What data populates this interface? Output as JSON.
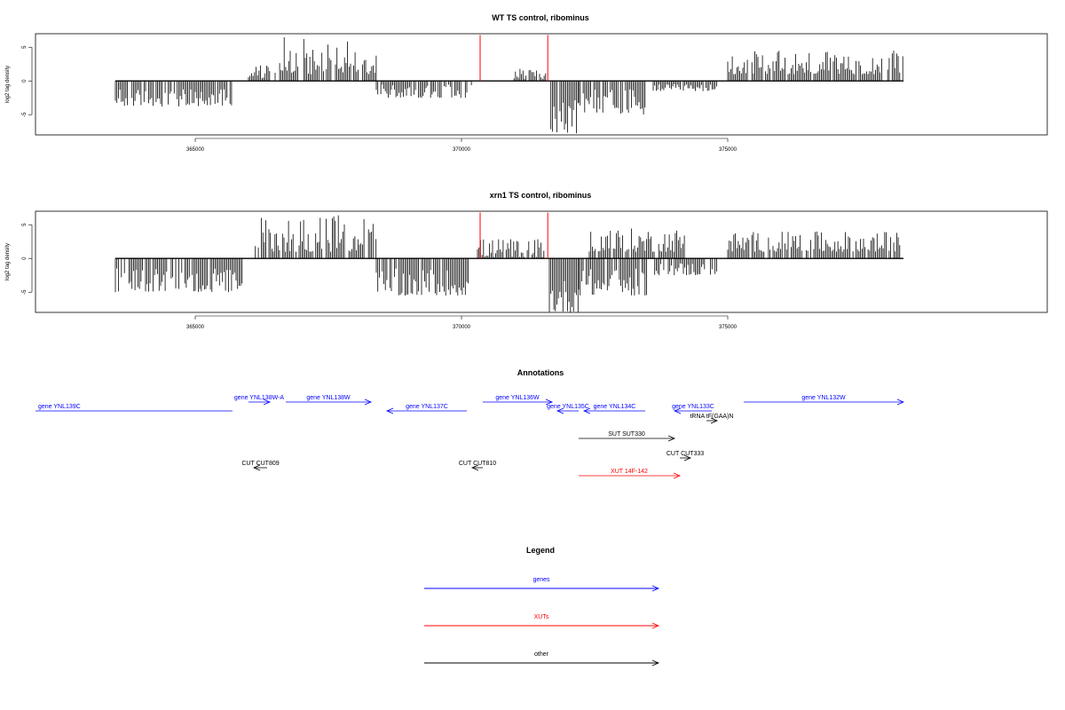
{
  "chart_data": [
    {
      "type": "bar",
      "title": "WT TS control, ribominus",
      "ylabel": "log2 tag density",
      "xlim": [
        362000,
        381000
      ],
      "ylim": [
        -8,
        7
      ],
      "xticks": [
        365000,
        370000,
        375000
      ],
      "xtick_labels": [
        "365000",
        "370000",
        "375000"
      ],
      "yticks": [
        -5,
        0,
        5
      ],
      "ytick_labels": [
        "-5",
        "0",
        "5"
      ],
      "baseline": [
        363500,
        378300
      ],
      "red_spikes": [
        {
          "x": 370350,
          "y": 6.8
        },
        {
          "x": 371620,
          "y": 6.8
        }
      ],
      "series": [
        {
          "start": 363500,
          "end": 365700,
          "min": -3.8,
          "max": -1.2,
          "sign": -1
        },
        {
          "start": 366000,
          "end": 366400,
          "min": 0.4,
          "max": 2.5,
          "sign": 1
        },
        {
          "start": 366500,
          "end": 368400,
          "min": 1.0,
          "max": 6.5,
          "sign": 1
        },
        {
          "start": 368400,
          "end": 370200,
          "min": -2.5,
          "max": -0.5,
          "sign": -1
        },
        {
          "start": 370900,
          "end": 371600,
          "min": 0.3,
          "max": 2.0,
          "sign": 1
        },
        {
          "start": 371650,
          "end": 372200,
          "min": -7.8,
          "max": -2.5,
          "sign": -1
        },
        {
          "start": 372200,
          "end": 373500,
          "min": -5.0,
          "max": -1.0,
          "sign": -1
        },
        {
          "start": 373600,
          "end": 374800,
          "min": -1.5,
          "max": -0.5,
          "sign": -1
        },
        {
          "start": 375000,
          "end": 378300,
          "min": 1.0,
          "max": 4.5,
          "sign": 1
        }
      ]
    },
    {
      "type": "bar",
      "title": "xrn1 TS control, ribominus",
      "ylabel": "log2 tag density",
      "xlim": [
        362000,
        381000
      ],
      "ylim": [
        -8,
        7
      ],
      "xticks": [
        365000,
        370000,
        375000
      ],
      "xtick_labels": [
        "365000",
        "370000",
        "375000"
      ],
      "yticks": [
        -5,
        0,
        5
      ],
      "ytick_labels": [
        "-5",
        "0",
        "5"
      ],
      "baseline": [
        363500,
        378300
      ],
      "red_spikes": [
        {
          "x": 370350,
          "y": 6.8
        },
        {
          "x": 371620,
          "y": 6.8
        }
      ],
      "series": [
        {
          "start": 363500,
          "end": 365900,
          "min": -5.0,
          "max": -1.5,
          "sign": -1
        },
        {
          "start": 366100,
          "end": 368400,
          "min": 1.0,
          "max": 6.5,
          "sign": 1
        },
        {
          "start": 368400,
          "end": 370200,
          "min": -5.5,
          "max": -1.5,
          "sign": -1
        },
        {
          "start": 370300,
          "end": 371600,
          "min": 0.2,
          "max": 3.0,
          "sign": 1
        },
        {
          "start": 371650,
          "end": 372200,
          "min": -8.0,
          "max": -3.0,
          "sign": -1
        },
        {
          "start": 372200,
          "end": 373500,
          "min": -5.5,
          "max": -1.5,
          "sign": -1
        },
        {
          "start": 372400,
          "end": 374200,
          "min": 1.0,
          "max": 4.5,
          "sign": 1
        },
        {
          "start": 373600,
          "end": 374800,
          "min": -2.5,
          "max": -0.5,
          "sign": -1
        },
        {
          "start": 375000,
          "end": 378300,
          "min": 1.0,
          "max": 4.0,
          "sign": 1
        }
      ]
    }
  ],
  "annotations": {
    "title": "Annotations",
    "features": [
      {
        "label": "gene YNL139C",
        "color": "#0000ff",
        "start": 362000,
        "end": 365700,
        "dir": "none",
        "row": 0
      },
      {
        "label": "gene YNL138W-A",
        "color": "#0000ff",
        "start": 366000,
        "end": 366400,
        "dir": "right",
        "row": 1
      },
      {
        "label": "gene YNL138W",
        "color": "#0000ff",
        "start": 366700,
        "end": 368300,
        "dir": "right",
        "row": 1
      },
      {
        "label": "gene YNL137C",
        "color": "#0000ff",
        "start": 368600,
        "end": 370100,
        "dir": "left",
        "row": 0
      },
      {
        "label": "gene YNL136W",
        "color": "#0000ff",
        "start": 370400,
        "end": 371700,
        "dir": "right",
        "row": 1
      },
      {
        "label": "gene YNL135C",
        "color": "#0000ff",
        "start": 371800,
        "end": 372200,
        "dir": "left",
        "row": 0
      },
      {
        "label": "gene YNL134C",
        "color": "#0000ff",
        "start": 372300,
        "end": 373450,
        "dir": "left",
        "row": 0
      },
      {
        "label": "gene YNL133C",
        "color": "#0000ff",
        "start": 374000,
        "end": 374700,
        "dir": "left",
        "row": 0
      },
      {
        "label": "gene YNL132W",
        "color": "#0000ff",
        "start": 375300,
        "end": 378300,
        "dir": "right",
        "row": 1
      },
      {
        "label": "tRNA tF(GAA)N",
        "color": "#000000",
        "start": 374600,
        "end": 374800,
        "dir": "right",
        "row": 2
      },
      {
        "label": "SUT SUT330",
        "color": "#000000",
        "start": 372200,
        "end": 374000,
        "dir": "right",
        "row": 3
      },
      {
        "label": "CUT CUT333",
        "color": "#000000",
        "start": 374100,
        "end": 374300,
        "dir": "right",
        "row": 4
      },
      {
        "label": "CUT CUT809",
        "color": "#000000",
        "start": 366100,
        "end": 366350,
        "dir": "left",
        "row": 5
      },
      {
        "label": "CUT CUT810",
        "color": "#000000",
        "start": 370200,
        "end": 370400,
        "dir": "left",
        "row": 5
      },
      {
        "label": "XUT 14F-142",
        "color": "#ff0000",
        "start": 372200,
        "end": 374100,
        "dir": "right",
        "row": 6
      }
    ]
  },
  "legend": {
    "title": "Legend",
    "items": [
      {
        "label": "genes",
        "color": "#0000ff"
      },
      {
        "label": "XUTs",
        "color": "#ff0000"
      },
      {
        "label": "other",
        "color": "#000000"
      }
    ]
  },
  "colors": {
    "spike": "#ff0000",
    "bars": "#000000"
  }
}
